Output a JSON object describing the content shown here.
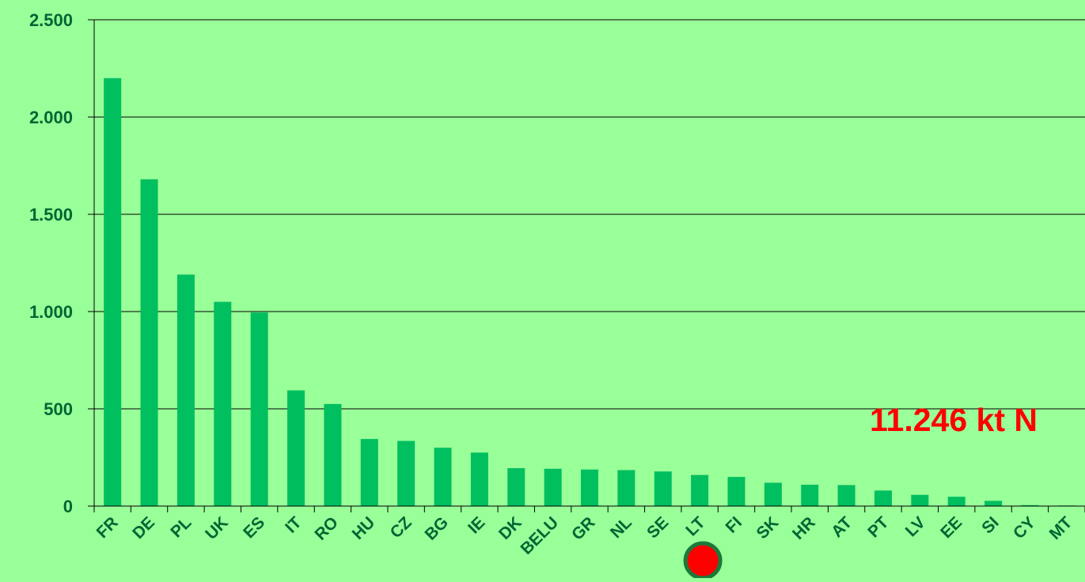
{
  "chart_data": {
    "type": "bar",
    "categories": [
      "FR",
      "DE",
      "PL",
      "UK",
      "ES",
      "IT",
      "RO",
      "HU",
      "CZ",
      "BG",
      "IE",
      "DK",
      "BELU",
      "GR",
      "NL",
      "SE",
      "LT",
      "FI",
      "SK",
      "HR",
      "AT",
      "PT",
      "LV",
      "EE",
      "SI",
      "CY",
      "MT"
    ],
    "values": [
      2200,
      1680,
      1190,
      1050,
      995,
      595,
      525,
      345,
      335,
      300,
      275,
      195,
      192,
      188,
      185,
      178,
      160,
      150,
      120,
      110,
      108,
      80,
      58,
      48,
      27,
      5,
      3
    ],
    "ylim": [
      0,
      2500
    ],
    "yticks": [
      0,
      500,
      1000,
      1500,
      2000,
      2500
    ],
    "ytick_labels": [
      "0",
      "500",
      "1.000",
      "1.500",
      "2.000",
      "2.500"
    ],
    "grid": true,
    "highlight_category": "LT",
    "annotation": "11.246 kt N",
    "title": "",
    "xlabel": "",
    "ylabel": ""
  },
  "colors": {
    "background": "#99ff99",
    "bar": "#00bf5f",
    "axis_text": "#006633",
    "annotation": "#ff0000",
    "marker_fill": "#ff0000",
    "marker_stroke": "#1a7a3a"
  }
}
